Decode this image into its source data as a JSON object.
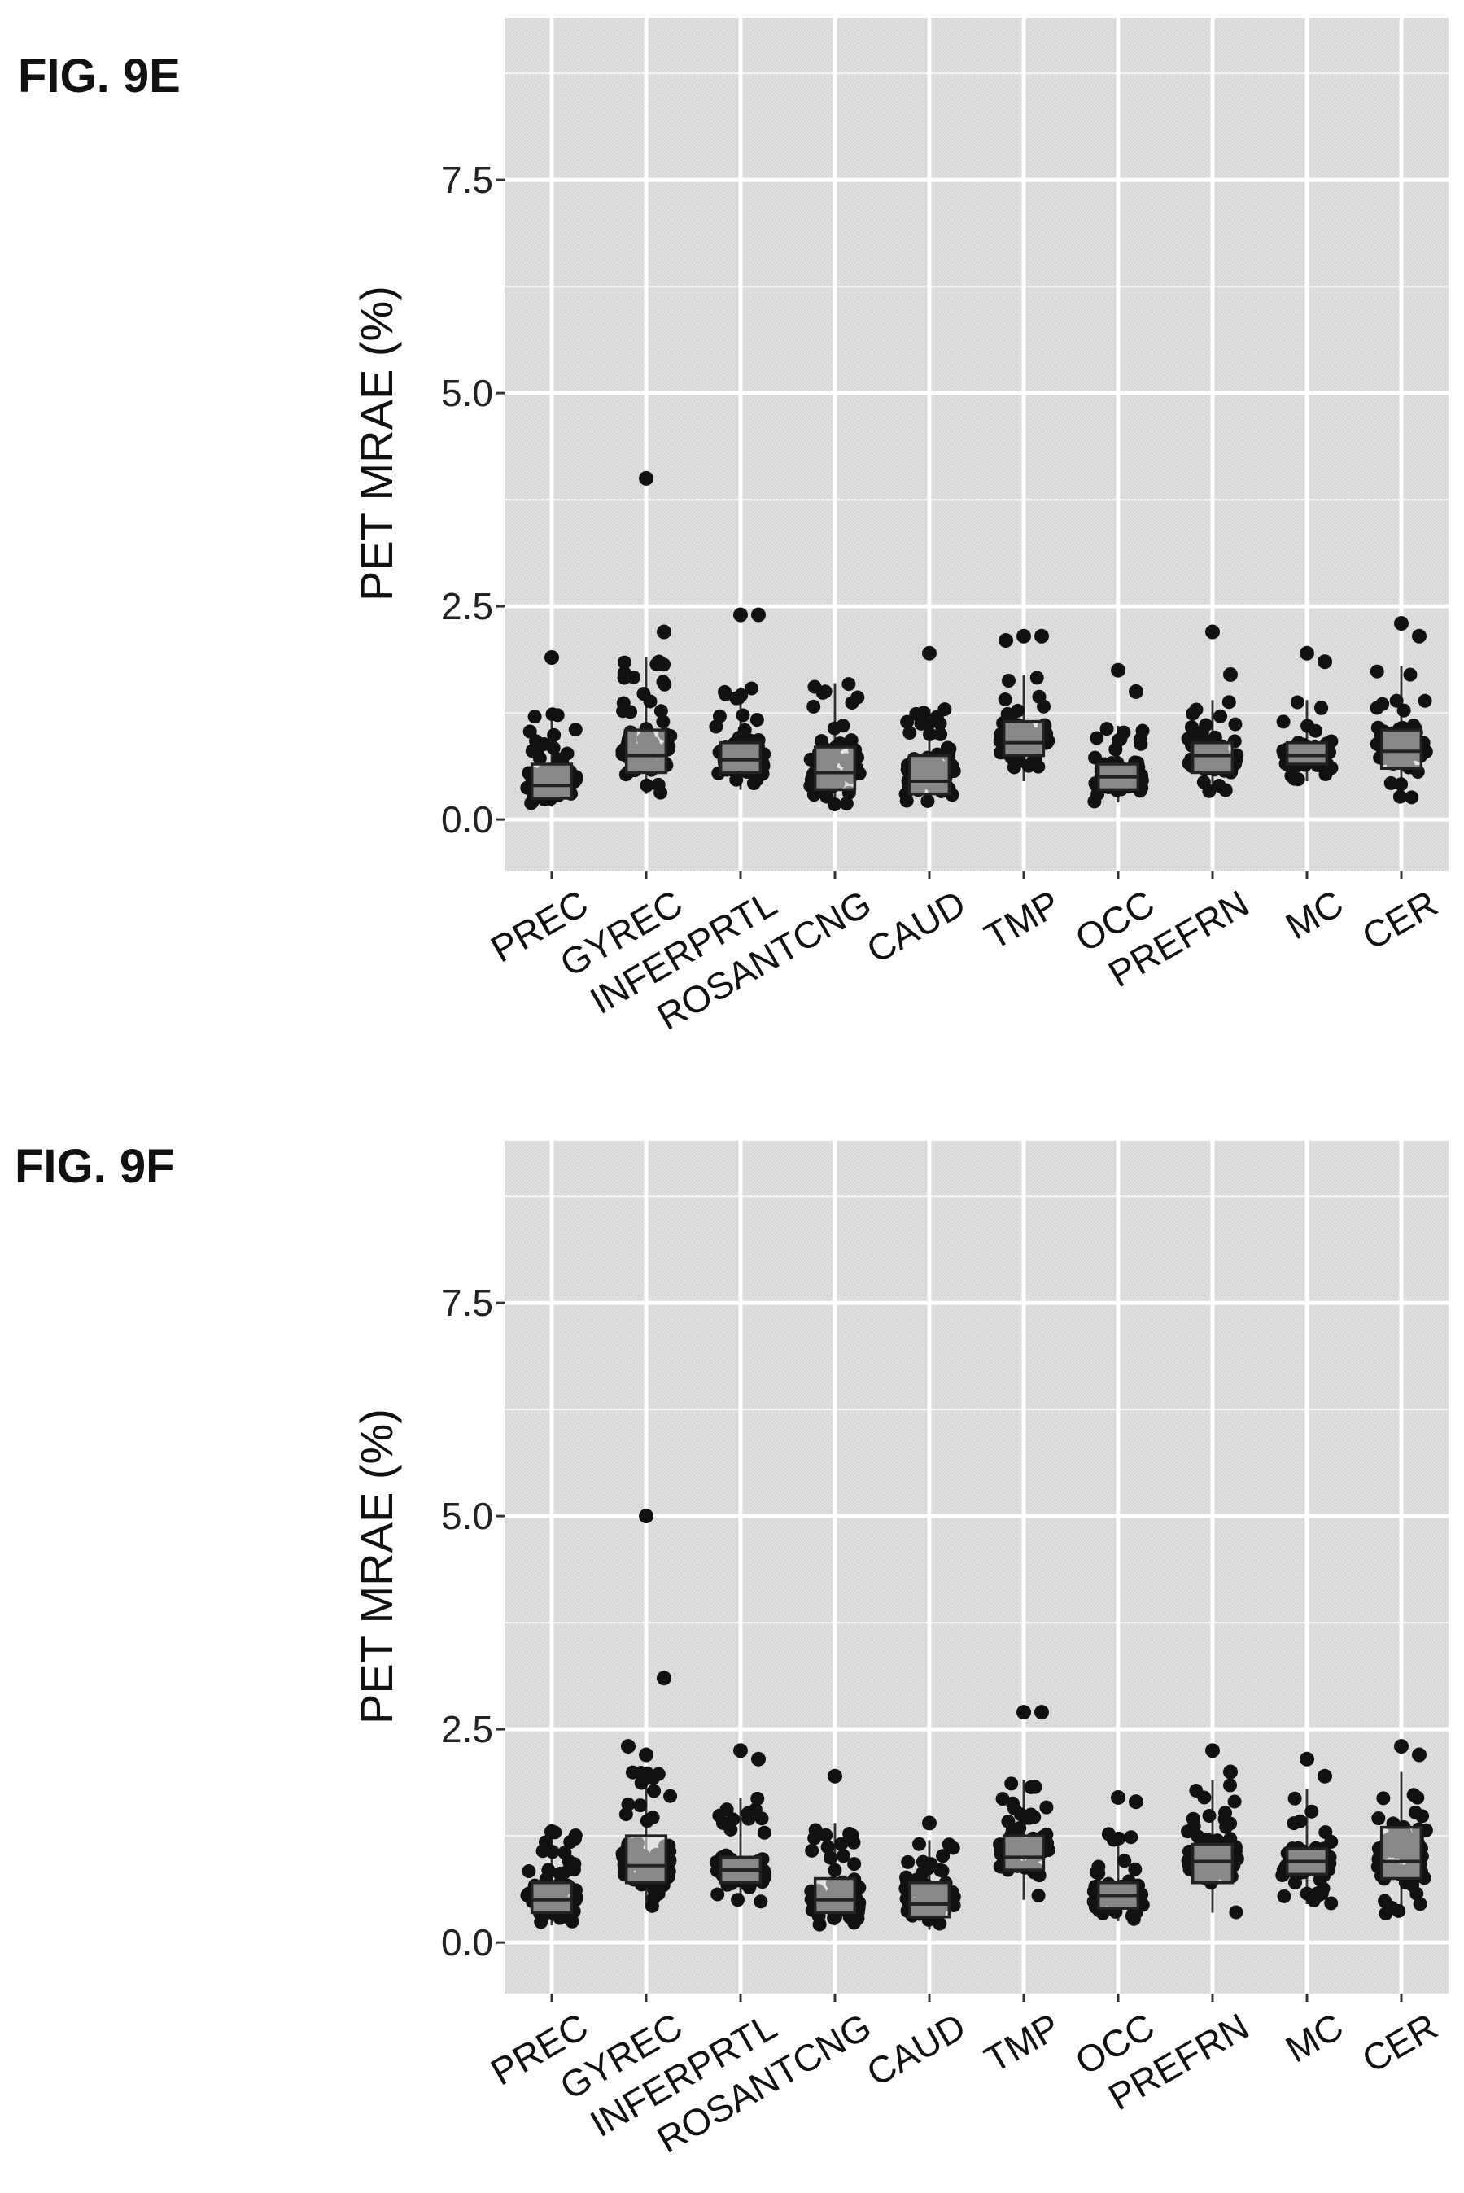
{
  "figures": [
    {
      "label": "FIG. 9E"
    },
    {
      "label": "FIG. 9F"
    }
  ],
  "chart_data": [
    {
      "type": "scatter",
      "subtype": "jittered box plot",
      "title": "FIG. 9E",
      "xlabel": "",
      "ylabel": "PET MRAE (%)",
      "ylim": [
        -0.6,
        9.4
      ],
      "yticks": [
        "0.0",
        "2.5",
        "5.0",
        "7.5"
      ],
      "ytick_values": [
        0.0,
        2.5,
        5.0,
        7.5
      ],
      "grid": true,
      "categories": [
        "PREC",
        "GYREC",
        "INFERPRTL",
        "ROSANTCNG",
        "CAUD",
        "TMP",
        "OCC",
        "PREFRN",
        "MC",
        "CER"
      ],
      "boxes": [
        {
          "q1": 0.25,
          "median": 0.4,
          "q3": 0.65
        },
        {
          "q1": 0.55,
          "median": 0.75,
          "q3": 1.05
        },
        {
          "q1": 0.55,
          "median": 0.7,
          "q3": 0.9
        },
        {
          "q1": 0.35,
          "median": 0.55,
          "q3": 0.85
        },
        {
          "q1": 0.3,
          "median": 0.45,
          "q3": 0.75
        },
        {
          "q1": 0.75,
          "median": 0.9,
          "q3": 1.15
        },
        {
          "q1": 0.35,
          "median": 0.5,
          "q3": 0.65
        },
        {
          "q1": 0.55,
          "median": 0.75,
          "q3": 0.9
        },
        {
          "q1": 0.65,
          "median": 0.75,
          "q3": 0.9
        },
        {
          "q1": 0.6,
          "median": 0.8,
          "q3": 1.05
        }
      ],
      "ranges": [
        {
          "min": 0.15,
          "max": 1.3
        },
        {
          "min": 0.3,
          "max": 1.9
        },
        {
          "min": 0.35,
          "max": 1.55
        },
        {
          "min": 0.1,
          "max": 1.6
        },
        {
          "min": 0.15,
          "max": 1.3
        },
        {
          "min": 0.45,
          "max": 1.7
        },
        {
          "min": 0.2,
          "max": 1.1
        },
        {
          "min": 0.3,
          "max": 1.4
        },
        {
          "min": 0.45,
          "max": 1.4
        },
        {
          "min": 0.25,
          "max": 1.8
        }
      ],
      "outliers": [
        {
          "category": "PREC",
          "y": 1.9
        },
        {
          "category": "GYREC",
          "y": 4.0
        },
        {
          "category": "GYREC",
          "y": 2.2
        },
        {
          "category": "INFERPRTL",
          "y": 2.4
        },
        {
          "category": "INFERPRTL",
          "y": 2.4
        },
        {
          "category": "CAUD",
          "y": 1.95
        },
        {
          "category": "TMP",
          "y": 2.15
        },
        {
          "category": "TMP",
          "y": 2.15
        },
        {
          "category": "TMP",
          "y": 2.1
        },
        {
          "category": "OCC",
          "y": 1.75
        },
        {
          "category": "OCC",
          "y": 1.5
        },
        {
          "category": "PREFRN",
          "y": 2.2
        },
        {
          "category": "PREFRN",
          "y": 1.7
        },
        {
          "category": "MC",
          "y": 1.95
        },
        {
          "category": "MC",
          "y": 1.85
        },
        {
          "category": "CER",
          "y": 2.3
        },
        {
          "category": "CER",
          "y": 2.15
        }
      ]
    },
    {
      "type": "scatter",
      "subtype": "jittered box plot",
      "title": "FIG. 9F",
      "xlabel": "",
      "ylabel": "PET MRAE (%)",
      "ylim": [
        -0.6,
        9.4
      ],
      "yticks": [
        "0.0",
        "2.5",
        "5.0",
        "7.5"
      ],
      "ytick_values": [
        0.0,
        2.5,
        5.0,
        7.5
      ],
      "grid": true,
      "categories": [
        "PREC",
        "GYREC",
        "INFERPRTL",
        "ROSANTCNG",
        "CAUD",
        "TMP",
        "OCC",
        "PREFRN",
        "MC",
        "CER"
      ],
      "boxes": [
        {
          "q1": 0.35,
          "median": 0.5,
          "q3": 0.7
        },
        {
          "q1": 0.7,
          "median": 0.9,
          "q3": 1.25
        },
        {
          "q1": 0.7,
          "median": 0.85,
          "q3": 1.0
        },
        {
          "q1": 0.35,
          "median": 0.5,
          "q3": 0.75
        },
        {
          "q1": 0.3,
          "median": 0.45,
          "q3": 0.7
        },
        {
          "q1": 0.85,
          "median": 1.0,
          "q3": 1.25
        },
        {
          "q1": 0.4,
          "median": 0.55,
          "q3": 0.7
        },
        {
          "q1": 0.7,
          "median": 0.95,
          "q3": 1.15
        },
        {
          "q1": 0.8,
          "median": 0.95,
          "q3": 1.1
        },
        {
          "q1": 0.75,
          "median": 0.95,
          "q3": 1.35
        }
      ],
      "ranges": [
        {
          "min": 0.2,
          "max": 1.3
        },
        {
          "min": 0.4,
          "max": 2.0
        },
        {
          "min": 0.45,
          "max": 1.7
        },
        {
          "min": 0.2,
          "max": 1.4
        },
        {
          "min": 0.15,
          "max": 1.2
        },
        {
          "min": 0.5,
          "max": 1.9
        },
        {
          "min": 0.25,
          "max": 1.3
        },
        {
          "min": 0.35,
          "max": 1.9
        },
        {
          "min": 0.45,
          "max": 1.8
        },
        {
          "min": 0.3,
          "max": 2.0
        }
      ],
      "outliers": [
        {
          "category": "PREC",
          "y": 1.3
        },
        {
          "category": "GYREC",
          "y": 5.0
        },
        {
          "category": "GYREC",
          "y": 3.1
        },
        {
          "category": "GYREC",
          "y": 2.3
        },
        {
          "category": "GYREC",
          "y": 2.2
        },
        {
          "category": "INFERPRTL",
          "y": 2.25
        },
        {
          "category": "INFERPRTL",
          "y": 2.15
        },
        {
          "category": "ROSANTCNG",
          "y": 1.95
        },
        {
          "category": "CAUD",
          "y": 1.4
        },
        {
          "category": "TMP",
          "y": 2.7
        },
        {
          "category": "TMP",
          "y": 2.7
        },
        {
          "category": "OCC",
          "y": 1.7
        },
        {
          "category": "OCC",
          "y": 1.65
        },
        {
          "category": "PREFRN",
          "y": 2.25
        },
        {
          "category": "PREFRN",
          "y": 2.0
        },
        {
          "category": "MC",
          "y": 2.15
        },
        {
          "category": "MC",
          "y": 1.95
        },
        {
          "category": "CER",
          "y": 2.3
        },
        {
          "category": "CER",
          "y": 2.2
        }
      ]
    }
  ]
}
